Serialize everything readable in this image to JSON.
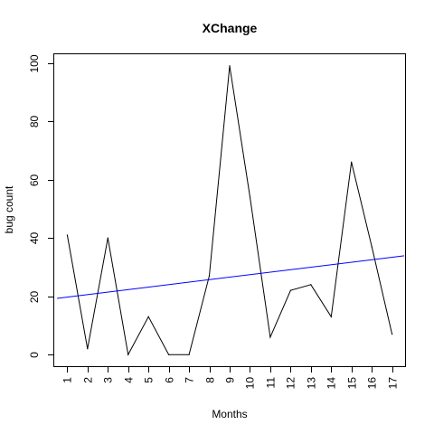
{
  "chart_data": {
    "type": "line",
    "title": "XChange",
    "xlabel": "Months",
    "ylabel": "bug count",
    "x": [
      1,
      2,
      3,
      4,
      5,
      6,
      7,
      8,
      9,
      10,
      11,
      12,
      13,
      14,
      15,
      16,
      17
    ],
    "series": [
      {
        "values": [
          41,
          2,
          40,
          0,
          13,
          0,
          0,
          27,
          99,
          54,
          6,
          22,
          24,
          13,
          66,
          37,
          7
        ],
        "color": "#000000"
      }
    ],
    "trend_line": {
      "color": "#0000ff",
      "points": [
        [
          0.5,
          19.3
        ],
        [
          17.6,
          33.9
        ]
      ]
    },
    "xlim": [
      0.36,
      17.64
    ],
    "ylim": [
      -3.96,
      102.96
    ],
    "x_ticks": [
      1,
      2,
      3,
      4,
      5,
      6,
      7,
      8,
      9,
      10,
      11,
      12,
      13,
      14,
      15,
      16,
      17
    ],
    "y_ticks": [
      0,
      20,
      40,
      60,
      80,
      100
    ],
    "grid": false,
    "legend": "none"
  }
}
